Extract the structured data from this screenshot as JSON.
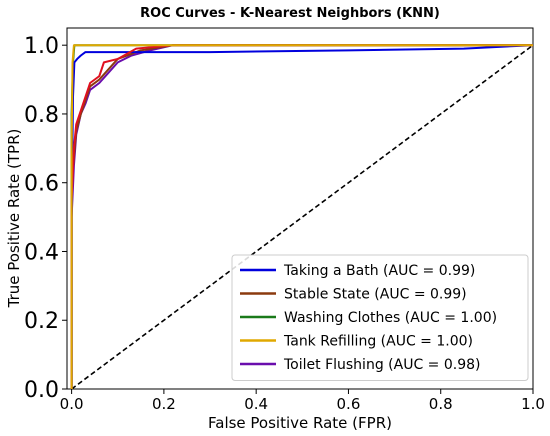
{
  "chart_data": {
    "type": "line",
    "title": "ROC Curves - K-Nearest Neighbors (KNN)",
    "xlabel": "False Positive Rate (FPR)",
    "ylabel": "True Positive Rate (TPR)",
    "xlim": [
      -0.01,
      1.0
    ],
    "ylim": [
      0.0,
      1.05
    ],
    "x_ticks": [
      {
        "value": 0.0,
        "label": "0.0"
      },
      {
        "value": 0.2,
        "label": "0.2"
      },
      {
        "value": 0.4,
        "label": "0.4"
      },
      {
        "value": 0.6,
        "label": "0.6"
      },
      {
        "value": 0.8,
        "label": "0.8"
      },
      {
        "value": 1.0,
        "label": "1.0"
      }
    ],
    "y_ticks": [
      {
        "value": 0.0,
        "label": "0.0"
      },
      {
        "value": 0.2,
        "label": "0.2"
      },
      {
        "value": 0.4,
        "label": "0.4"
      },
      {
        "value": 0.6,
        "label": "0.6"
      },
      {
        "value": 0.8,
        "label": "0.8"
      },
      {
        "value": 1.0,
        "label": "1.0"
      }
    ],
    "grid": false,
    "legend_position": "lower-right",
    "series": [
      {
        "name": "Taking a Bath (AUC = 0.99)",
        "color": "#0000dd",
        "points": [
          [
            0,
            0
          ],
          [
            0,
            0.5
          ],
          [
            0.003,
            0.85
          ],
          [
            0.006,
            0.95
          ],
          [
            0.012,
            0.96
          ],
          [
            0.02,
            0.97
          ],
          [
            0.03,
            0.98
          ],
          [
            0.08,
            0.98
          ],
          [
            0.3,
            0.98
          ],
          [
            0.6,
            0.985
          ],
          [
            0.85,
            0.99
          ],
          [
            1.0,
            1.0
          ]
        ]
      },
      {
        "name": "Stable State (AUC = 0.99)",
        "color": "#8b3a0f",
        "points": [
          [
            0,
            0
          ],
          [
            0,
            0.6
          ],
          [
            0.01,
            0.75
          ],
          [
            0.02,
            0.8
          ],
          [
            0.04,
            0.88
          ],
          [
            0.06,
            0.9
          ],
          [
            0.1,
            0.96
          ],
          [
            0.15,
            0.985
          ],
          [
            0.22,
            1.0
          ],
          [
            1.0,
            1.0
          ]
        ]
      },
      {
        "name": "Washing Clothes (AUC = 1.00)",
        "color": "#1a7a1a",
        "points": [
          [
            0,
            0
          ],
          [
            0,
            0.8
          ],
          [
            0.003,
            0.95
          ],
          [
            0.006,
            1.0
          ],
          [
            1.0,
            1.0
          ]
        ]
      },
      {
        "name": "Tank Refilling (AUC = 1.00)",
        "color": "#e0a800",
        "points": [
          [
            0,
            0
          ],
          [
            0,
            0.7
          ],
          [
            0.002,
            0.95
          ],
          [
            0.005,
            1.0
          ],
          [
            1.0,
            1.0
          ]
        ]
      },
      {
        "name": "Toilet Flushing (AUC = 0.98)",
        "color": "#6a0dad",
        "points": [
          [
            0,
            0
          ],
          [
            0,
            0.5
          ],
          [
            0.005,
            0.65
          ],
          [
            0.01,
            0.74
          ],
          [
            0.02,
            0.8
          ],
          [
            0.03,
            0.83
          ],
          [
            0.04,
            0.87
          ],
          [
            0.06,
            0.89
          ],
          [
            0.08,
            0.92
          ],
          [
            0.1,
            0.95
          ],
          [
            0.13,
            0.97
          ],
          [
            0.17,
            0.985
          ],
          [
            0.22,
            1.0
          ],
          [
            1.0,
            1.0
          ]
        ]
      },
      {
        "name": "",
        "color": "#e01020",
        "points": [
          [
            0,
            0
          ],
          [
            0,
            0.55
          ],
          [
            0.005,
            0.7
          ],
          [
            0.01,
            0.77
          ],
          [
            0.02,
            0.81
          ],
          [
            0.03,
            0.85
          ],
          [
            0.04,
            0.89
          ],
          [
            0.06,
            0.91
          ],
          [
            0.07,
            0.95
          ],
          [
            0.1,
            0.96
          ],
          [
            0.14,
            0.99
          ],
          [
            0.22,
            1.0
          ],
          [
            1.0,
            1.0
          ]
        ]
      }
    ],
    "diagonal": {
      "color": "#000000",
      "points": [
        [
          0,
          0
        ],
        [
          1,
          1
        ]
      ]
    }
  }
}
